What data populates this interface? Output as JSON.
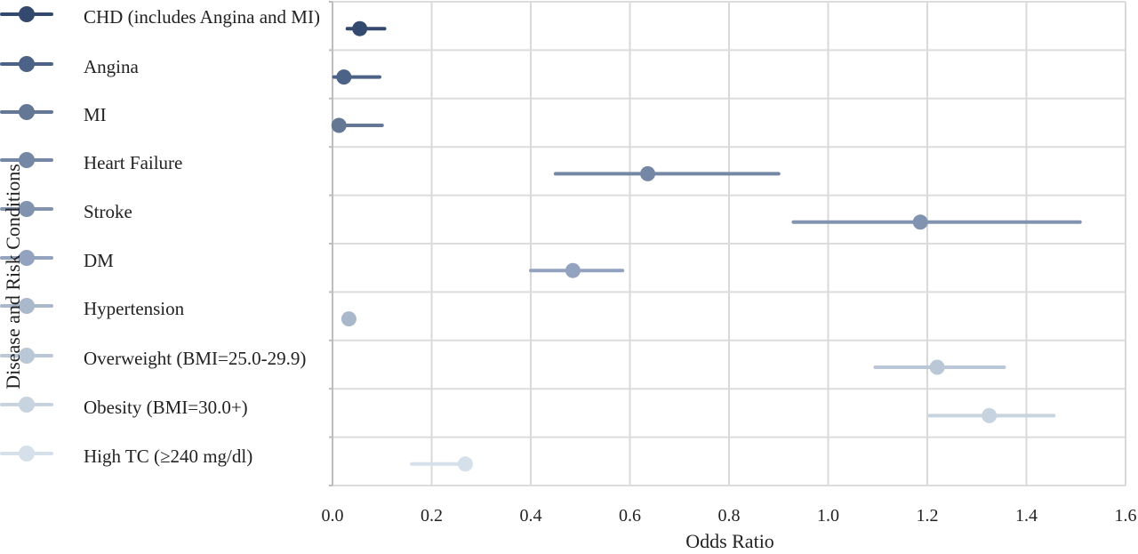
{
  "chart_data": {
    "type": "forest",
    "title": "",
    "xlabel": "Odds Ratio",
    "ylabel": "Disease and Risk Conditions",
    "xlim": [
      0.0,
      1.6
    ],
    "xticks": [
      "0.0",
      "0.2",
      "0.4",
      "0.6",
      "0.8",
      "1.0",
      "1.2",
      "1.4",
      "1.6"
    ],
    "grid": true,
    "legend_position": "left",
    "series": [
      {
        "name": "CHD (includes Angina and MI)",
        "or": 0.055,
        "ci": [
          0.03,
          0.105
        ],
        "color": "#34496e"
      },
      {
        "name": "Angina",
        "or": 0.023,
        "ci": [
          0.003,
          0.095
        ],
        "color": "#4c6286"
      },
      {
        "name": "MI",
        "or": 0.013,
        "ci": [
          0.003,
          0.1
        ],
        "color": "#647896"
      },
      {
        "name": "Heart Failure",
        "or": 0.636,
        "ci": [
          0.45,
          0.9
        ],
        "color": "#7488a6"
      },
      {
        "name": "Stroke",
        "or": 1.186,
        "ci": [
          0.93,
          1.508
        ],
        "color": "#8293b0"
      },
      {
        "name": "DM",
        "or": 0.485,
        "ci": [
          0.4,
          0.585
        ],
        "color": "#93a3bf"
      },
      {
        "name": "Hypertension",
        "or": 0.033,
        "ci": [
          0.033,
          0.033
        ],
        "color": "#aab8cc"
      },
      {
        "name": "Overweight (BMI=25.0-29.9)",
        "or": 1.22,
        "ci": [
          1.095,
          1.355
        ],
        "color": "#bac7d6"
      },
      {
        "name": "Obesity (BMI=30.0+)",
        "or": 1.325,
        "ci": [
          1.205,
          1.455
        ],
        "color": "#c7d3df"
      },
      {
        "name": "High TC (≥240 mg/dl)",
        "or": 0.268,
        "ci": [
          0.16,
          0.268
        ],
        "color": "#d6e0ea"
      }
    ]
  }
}
